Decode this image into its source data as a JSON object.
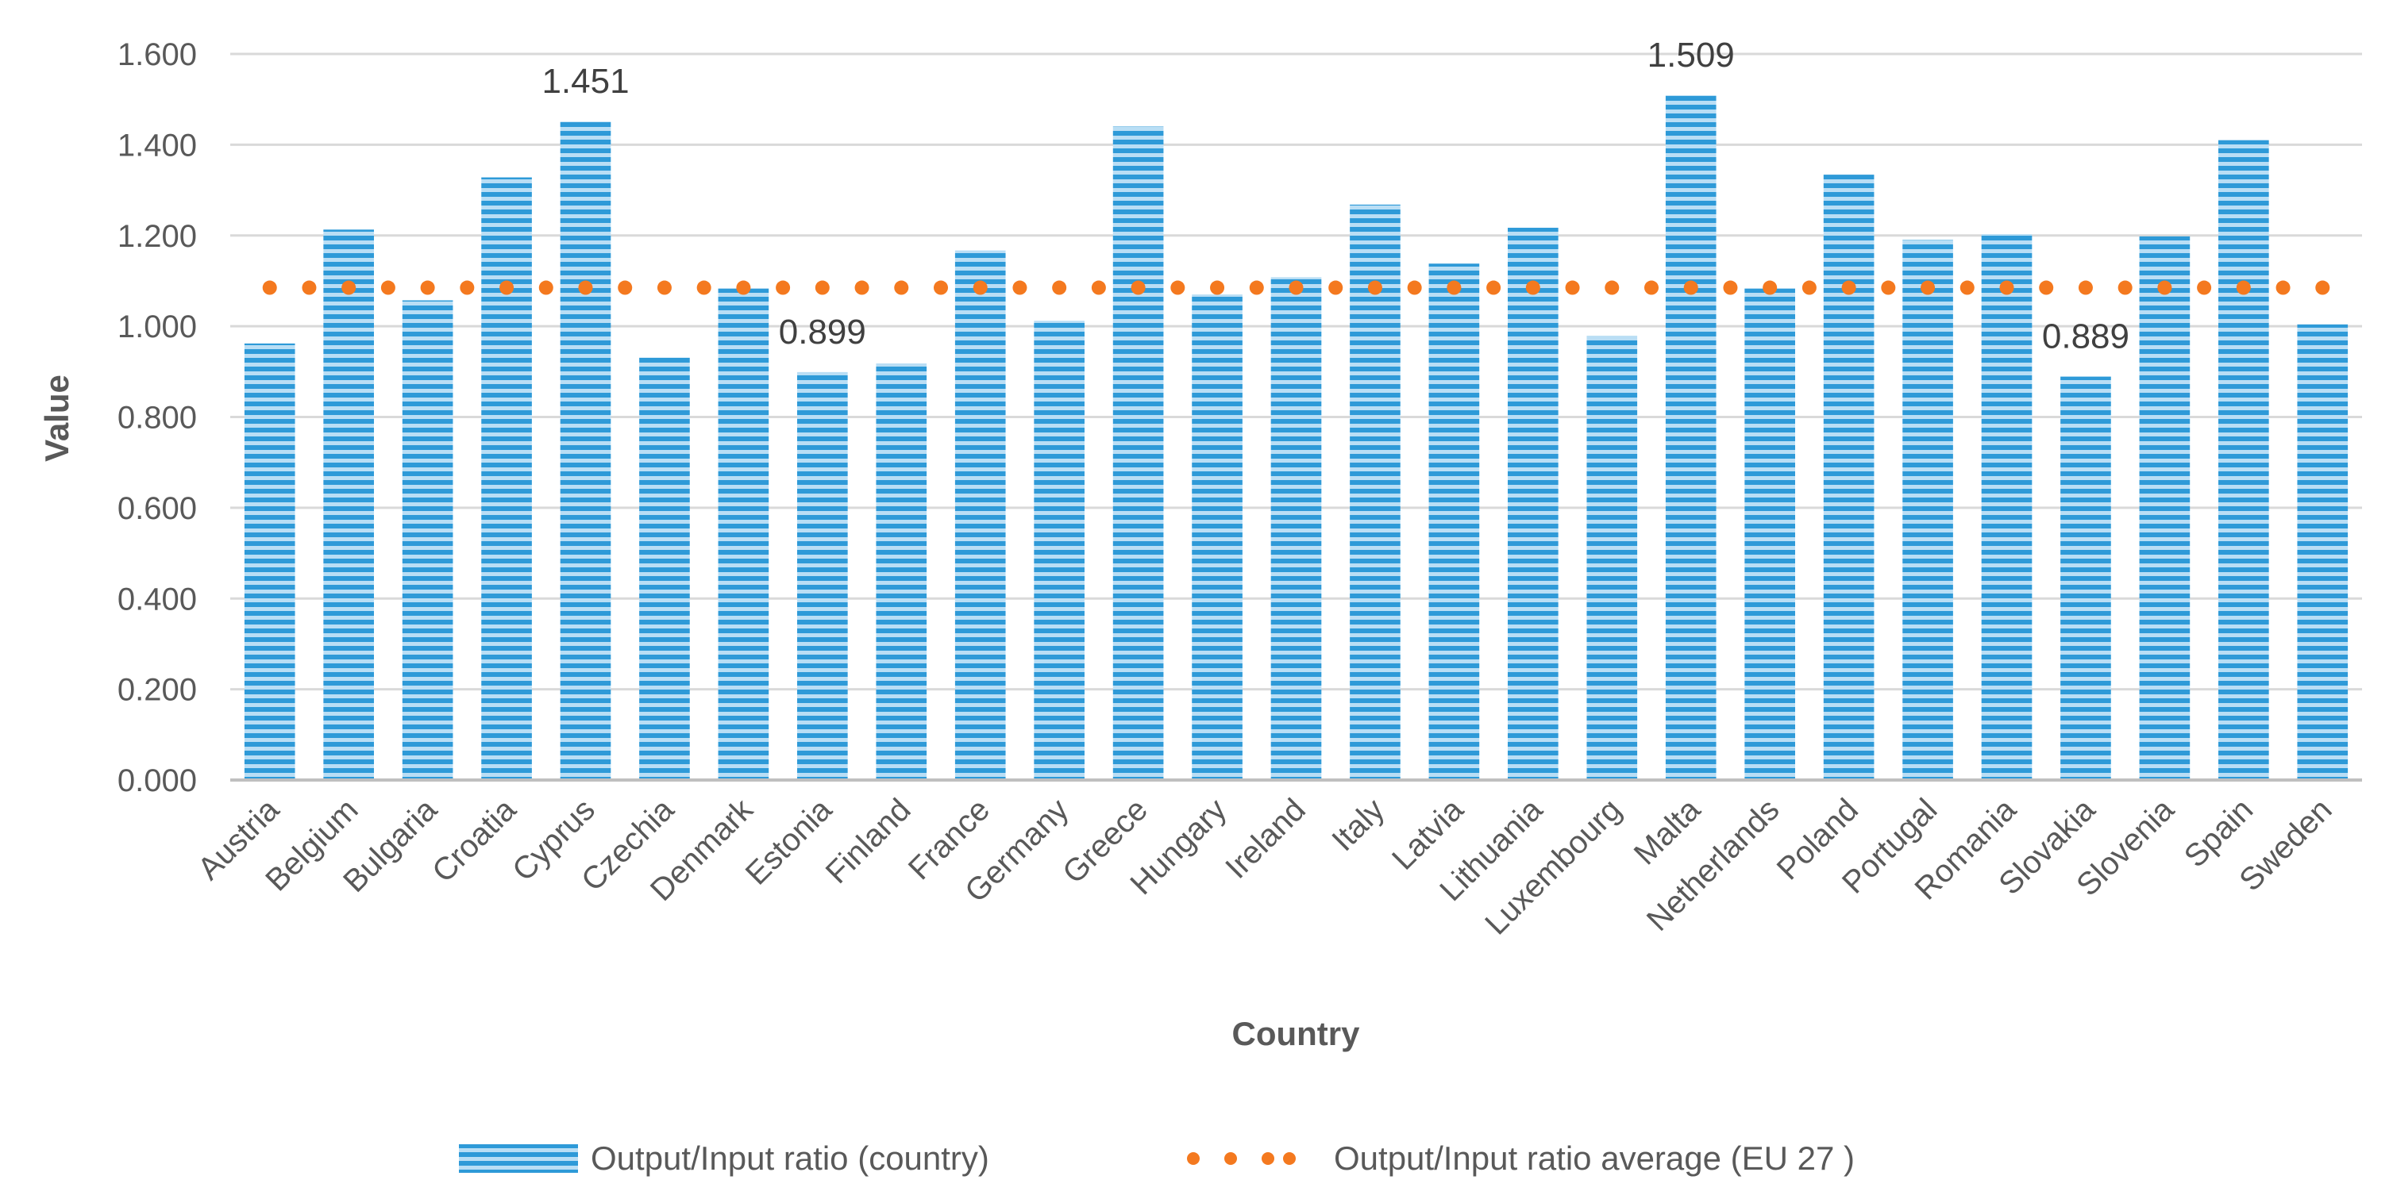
{
  "colors": {
    "bar_fill": "#2e9ad8",
    "bar_stripe": "#b9def5",
    "average_line": "#f4791f",
    "grid": "#d9d9d9",
    "axis": "#bfbfbf",
    "text": "#595959"
  },
  "chart_data": {
    "type": "bar",
    "title": "",
    "xlabel": "Country",
    "ylabel": "Value",
    "ylim": [
      0,
      1.6
    ],
    "yticks": [
      "0.000",
      "0.200",
      "0.400",
      "0.600",
      "0.800",
      "1.000",
      "1.200",
      "1.400",
      "1.600"
    ],
    "grid": true,
    "legend_position": "bottom",
    "categories": [
      "Austria",
      "Belgium",
      "Bulgaria",
      "Croatia",
      "Cyprus",
      "Czechia",
      "Denmark",
      "Estonia",
      "Finland",
      "France",
      "Germany",
      "Greece",
      "Hungary",
      "Ireland",
      "Italy",
      "Latvia",
      "Lithuania",
      "Luxembourg",
      "Malta",
      "Netherlands",
      "Poland",
      "Portugal",
      "Romania",
      "Slovakia",
      "Slovenia",
      "Spain",
      "Sweden"
    ],
    "series": [
      {
        "name": "Output/Input ratio (country)",
        "kind": "bar",
        "values": [
          0.962,
          1.213,
          1.057,
          1.328,
          1.451,
          0.931,
          1.083,
          0.899,
          0.918,
          1.167,
          1.012,
          1.44,
          1.07,
          1.108,
          1.268,
          1.138,
          1.217,
          0.978,
          1.509,
          1.083,
          1.334,
          1.19,
          1.203,
          0.889,
          1.198,
          1.41,
          1.004
        ]
      },
      {
        "name": "Output/Input ratio average (EU 27 )",
        "kind": "dotted-line",
        "value": 1.085
      }
    ],
    "data_labels": [
      {
        "category": "Cyprus",
        "text": "1.451"
      },
      {
        "category": "Estonia",
        "text": "0.899"
      },
      {
        "category": "Malta",
        "text": "1.509"
      },
      {
        "category": "Slovakia",
        "text": "0.889"
      }
    ]
  },
  "legend": {
    "items": [
      {
        "label": "Output/Input ratio (country)"
      },
      {
        "label": "Output/Input ratio average (EU 27 )"
      }
    ]
  }
}
